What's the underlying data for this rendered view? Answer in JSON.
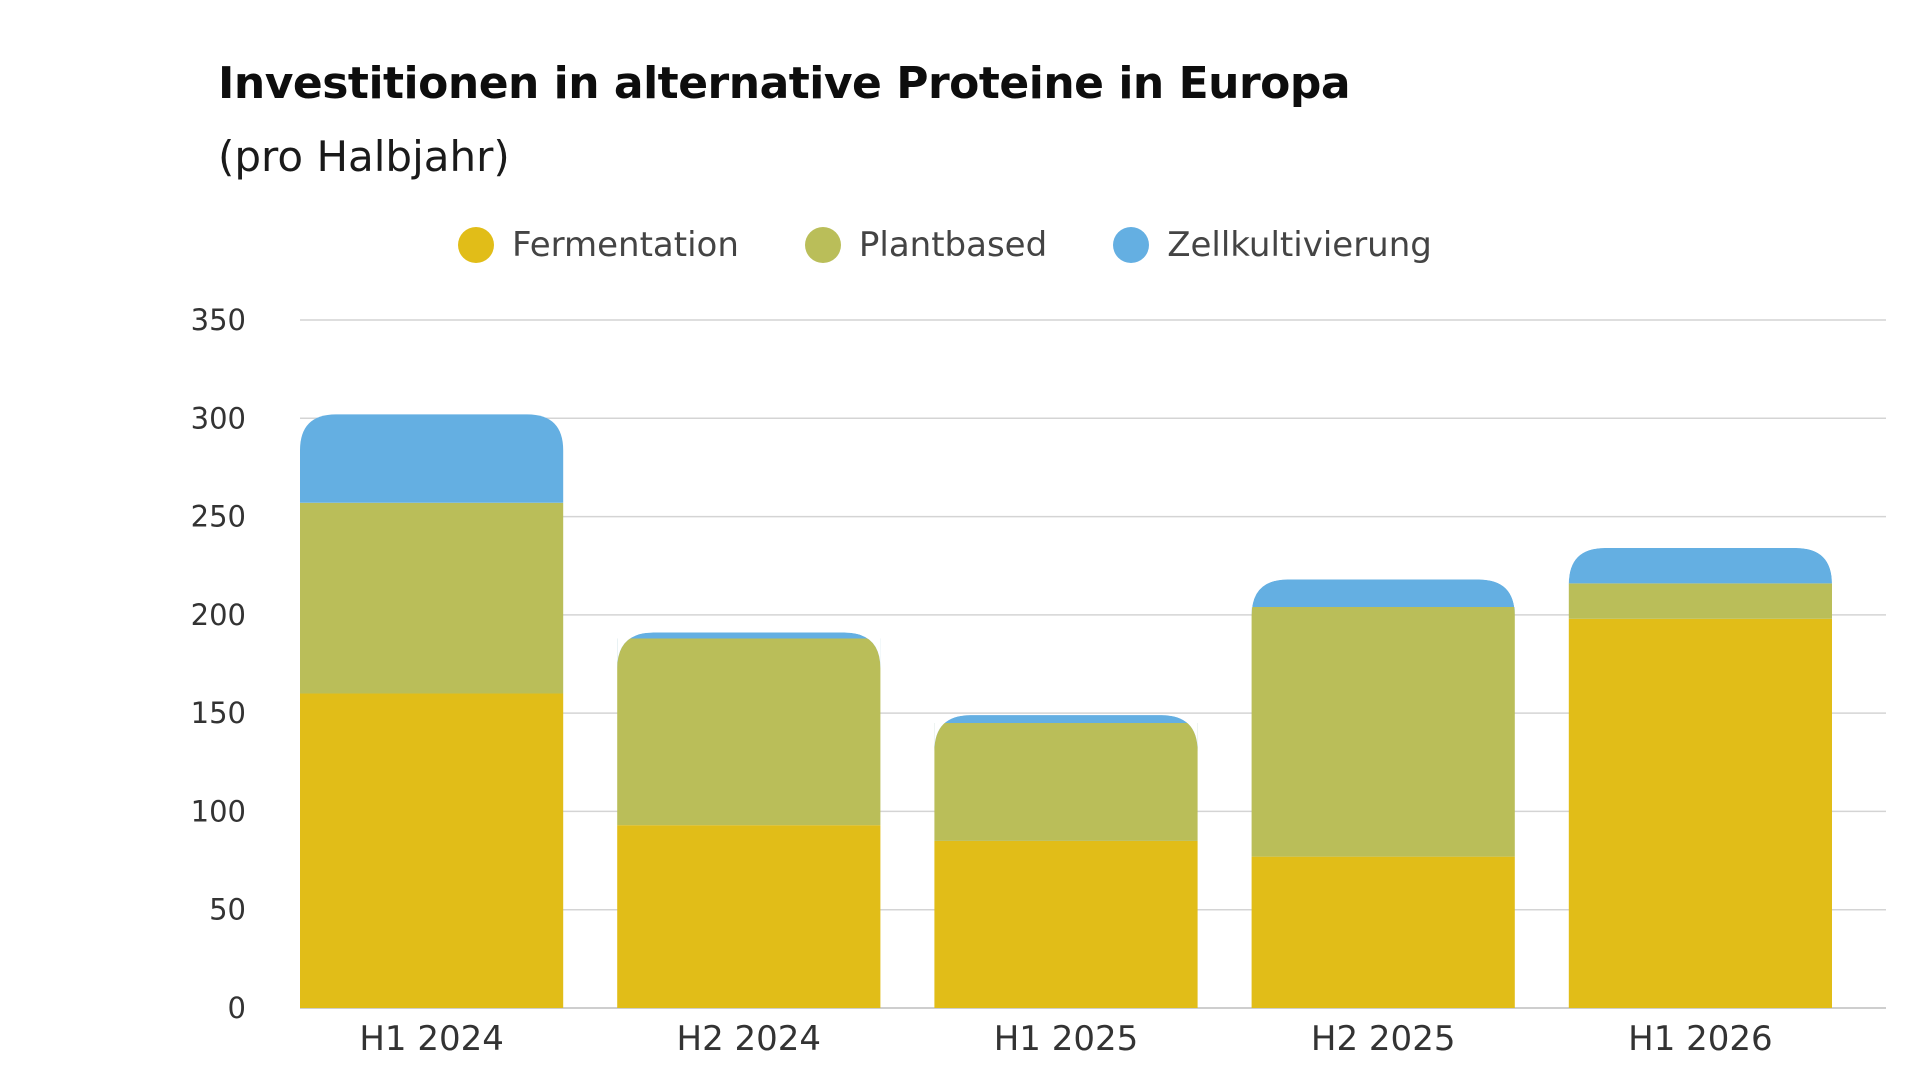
{
  "header": {
    "title": "Investitionen in alternative Proteine in Europa",
    "subtitle": "(pro Halbjahr)"
  },
  "legend": {
    "placement": "top-center",
    "items": [
      {
        "label": "Fermentation",
        "color": "#e1bd18"
      },
      {
        "label": "Plantbased",
        "color": "#babe59"
      },
      {
        "label": "Zellkultivierung",
        "color": "#64afe2"
      }
    ]
  },
  "chart_data": {
    "type": "bar",
    "stacked": true,
    "title": "Investitionen in alternative Proteine in Europa",
    "subtitle": "(pro Halbjahr)",
    "xlabel": "",
    "ylabel": "",
    "ylim": [
      0,
      350
    ],
    "yticks": [
      0,
      50,
      100,
      150,
      200,
      250,
      300,
      350
    ],
    "grid": true,
    "legend_placement": "top-center",
    "categories": [
      "H1 2024",
      "H2 2024",
      "H1 2025",
      "H2 2025",
      "H1 2026"
    ],
    "series": [
      {
        "name": "Fermentation",
        "color": "#e1bd18",
        "values": [
          160,
          93,
          85,
          77,
          198
        ]
      },
      {
        "name": "Plantbased",
        "color": "#babe59",
        "values": [
          97,
          95,
          60,
          127,
          18
        ]
      },
      {
        "name": "Zellkultivierung",
        "color": "#64afe2",
        "values": [
          45,
          3,
          4,
          14,
          18
        ]
      }
    ]
  }
}
